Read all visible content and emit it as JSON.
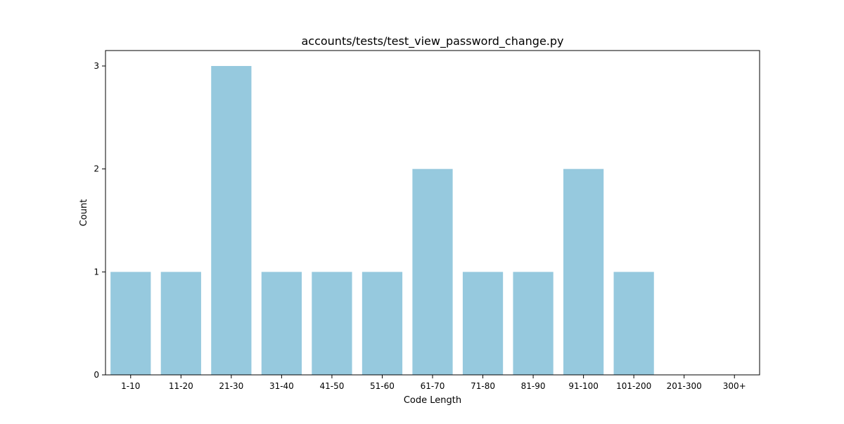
{
  "chart_data": {
    "type": "bar",
    "title": "accounts/tests/test_view_password_change.py",
    "xlabel": "Code Length",
    "ylabel": "Count",
    "categories": [
      "1-10",
      "11-20",
      "21-30",
      "31-40",
      "41-50",
      "51-60",
      "61-70",
      "71-80",
      "81-90",
      "91-100",
      "101-200",
      "201-300",
      "300+"
    ],
    "values": [
      1,
      1,
      3,
      1,
      1,
      1,
      2,
      1,
      1,
      2,
      1,
      0,
      0
    ],
    "ylim": [
      0,
      3.15
    ],
    "yticks": [
      0,
      1,
      2,
      3
    ],
    "grid": false,
    "bar_color": "#96c9de"
  }
}
